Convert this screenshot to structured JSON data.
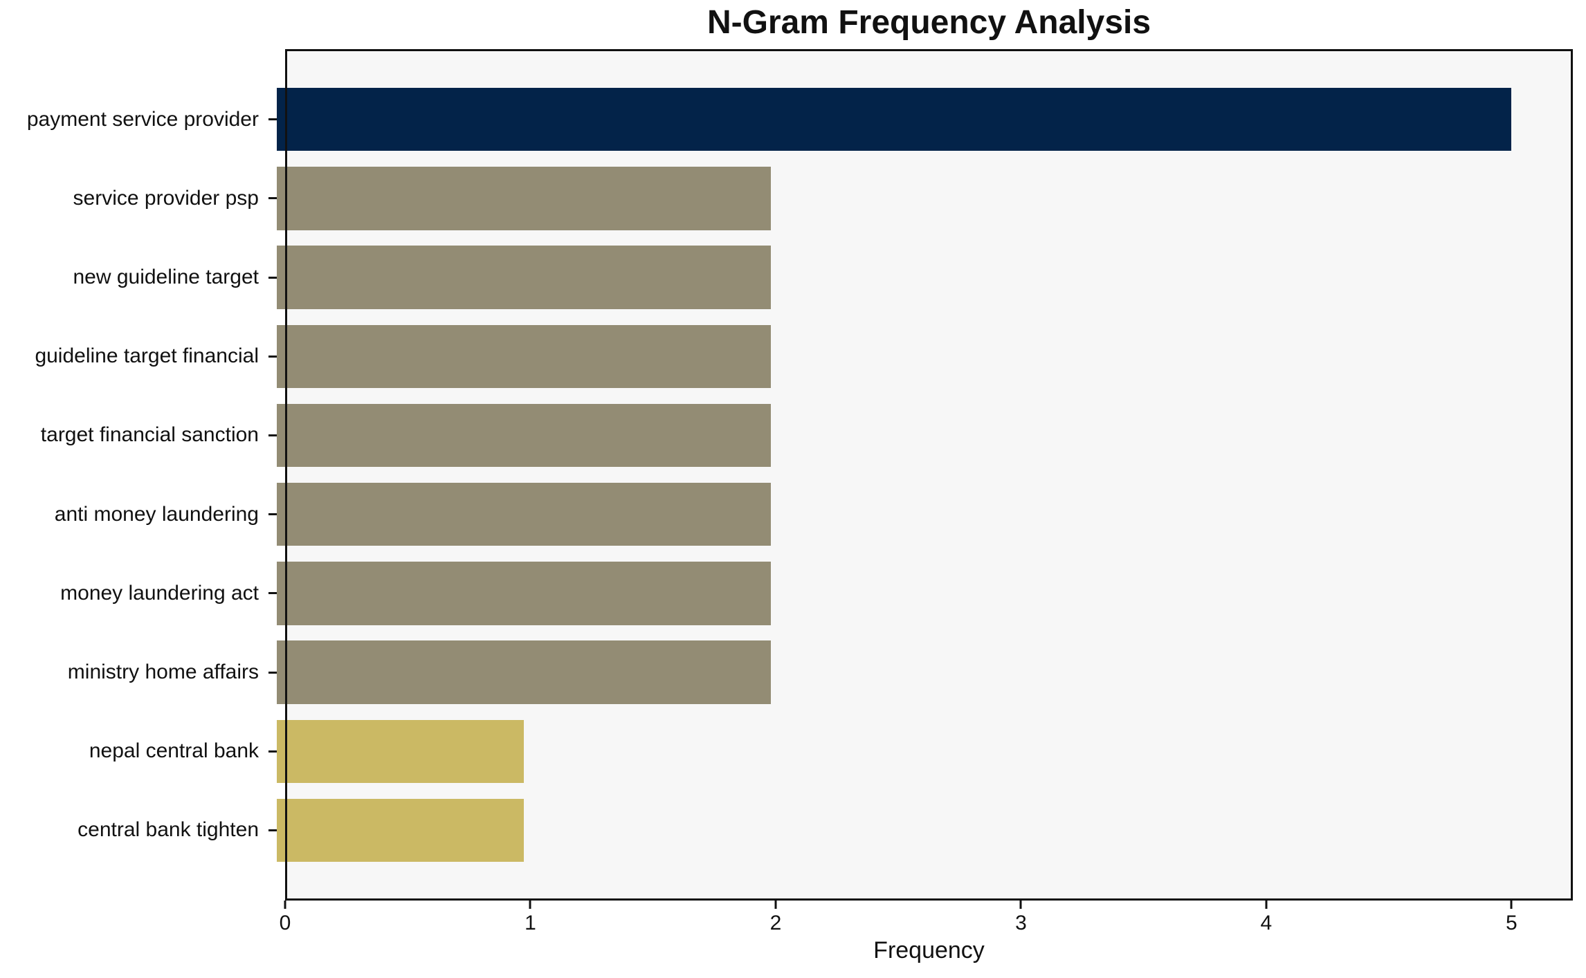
{
  "title": "N-Gram Frequency Analysis",
  "colors": {
    "navy": "#032349",
    "olive": "#938C74",
    "gold": "#CBB964",
    "plot_bg": "#F7F7F7",
    "figure_bg": "#FFFFFF",
    "axis": "#111111"
  },
  "chart_data": {
    "type": "bar",
    "orientation": "horizontal",
    "title": "N-Gram Frequency Analysis",
    "xlabel": "Frequency",
    "ylabel": "",
    "categories": [
      "payment service provider",
      "service provider psp",
      "new guideline target",
      "guideline target financial",
      "target financial sanction",
      "anti money laundering",
      "money laundering act",
      "ministry home affairs",
      "nepal central bank",
      "central bank tighten"
    ],
    "values": [
      5,
      2,
      2,
      2,
      2,
      2,
      2,
      2,
      1,
      1
    ],
    "bar_colors": [
      "#032349",
      "#938C74",
      "#938C74",
      "#938C74",
      "#938C74",
      "#938C74",
      "#938C74",
      "#938C74",
      "#CBB964",
      "#CBB964"
    ],
    "xticks": [
      0,
      1,
      2,
      3,
      4,
      5
    ],
    "xlim": [
      0,
      5.25
    ],
    "grid": false,
    "legend_position": "none"
  }
}
